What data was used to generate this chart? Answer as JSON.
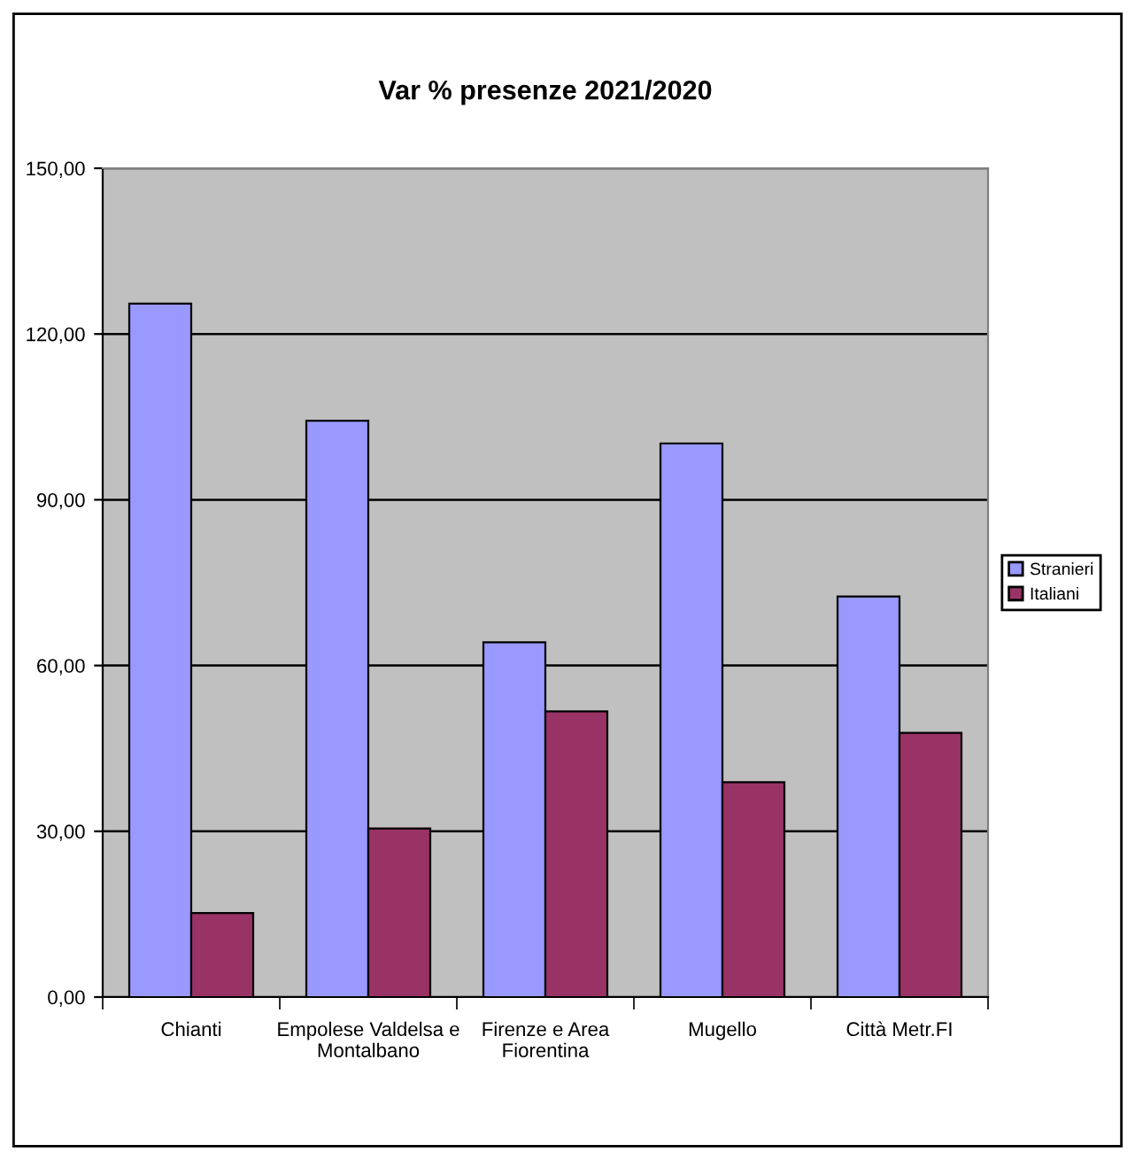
{
  "chart_data": {
    "type": "bar",
    "title": "Var % presenze 2021/2020",
    "categories": [
      "Chianti",
      "Empolese Valdelsa e\nMontalbano",
      "Firenze e Area\nFiorentina",
      "Mugello",
      "Città Metr.FI"
    ],
    "series": [
      {
        "name": "Stranieri",
        "color": "#9999ff",
        "values": [
          125.5,
          104.3,
          64.2,
          100.2,
          72.5
        ]
      },
      {
        "name": "Italiani",
        "color": "#993366",
        "values": [
          15.2,
          30.5,
          51.7,
          38.9,
          47.8
        ]
      }
    ],
    "ylim": [
      0,
      150
    ],
    "yticks": [
      {
        "value": 0,
        "label": "0,00"
      },
      {
        "value": 30,
        "label": "30,00"
      },
      {
        "value": 60,
        "label": "60,00"
      },
      {
        "value": 90,
        "label": "90,00"
      },
      {
        "value": 120,
        "label": "120,00"
      },
      {
        "value": 150,
        "label": "150,00"
      }
    ],
    "grid": "y",
    "legend": "right"
  }
}
